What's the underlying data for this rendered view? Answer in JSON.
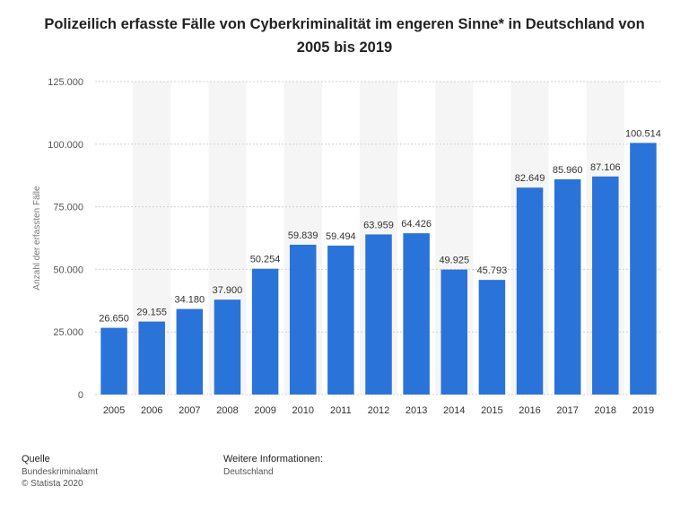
{
  "chart_data": {
    "type": "bar",
    "title": "Polizeilich erfasste Fälle von Cyberkriminalität im engeren Sinne* in Deutschland von 2005 bis 2019",
    "title_lines": [
      "Polizeilich erfasste Fälle von Cyberkriminalität im engeren Sinne* in Deutschland von",
      "2005 bis 2019"
    ],
    "xlabel": "",
    "ylabel": "Anzahl der erfassten Fälle",
    "categories": [
      "2005",
      "2006",
      "2007",
      "2008",
      "2009",
      "2010",
      "2011",
      "2012",
      "2013",
      "2014",
      "2015",
      "2016",
      "2017",
      "2018",
      "2019"
    ],
    "values": [
      26650,
      29155,
      34180,
      37900,
      50254,
      59839,
      59494,
      63959,
      64426,
      49925,
      45793,
      82649,
      85960,
      87106,
      100514
    ],
    "value_labels": [
      "26.650",
      "29.155",
      "34.180",
      "37.900",
      "50.254",
      "59.839",
      "59.494",
      "63.959",
      "64.426",
      "49.925",
      "45.793",
      "82.649",
      "85.960",
      "87.106",
      "100.514"
    ],
    "ylim": [
      0,
      125000
    ],
    "yticks": [
      0,
      25000,
      50000,
      75000,
      100000,
      125000
    ],
    "ytick_labels": [
      "0",
      "25.000",
      "50.000",
      "75.000",
      "100.000",
      "125.000"
    ],
    "grid": true,
    "bar_color": "#2a73d9",
    "stripe_color": "#f5f5f5",
    "grid_color": "#d0d0d0"
  },
  "footer": {
    "source_heading": "Quelle",
    "source_name": "Bundeskriminalamt",
    "copyright": "© Statista 2020",
    "info_heading": "Weitere Informationen:",
    "info_value": "Deutschland"
  }
}
